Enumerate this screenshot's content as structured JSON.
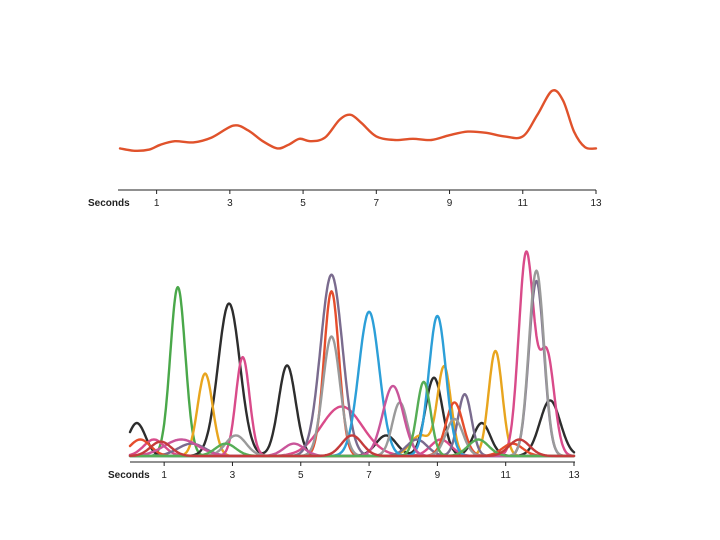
{
  "chart_data": [
    {
      "type": "line",
      "title": "",
      "xlabel": "Seconds",
      "xticks": [
        1,
        3,
        5,
        7,
        9,
        11,
        13
      ],
      "xlim": [
        0,
        13
      ],
      "ylim": [
        0,
        1
      ],
      "grid": false,
      "legend": "none",
      "series": [
        {
          "color": "#e0522b",
          "points": [
            [
              0,
              0.18
            ],
            [
              0.4,
              0.16
            ],
            [
              0.8,
              0.17
            ],
            [
              1.1,
              0.21
            ],
            [
              1.5,
              0.24
            ],
            [
              2.0,
              0.23
            ],
            [
              2.5,
              0.27
            ],
            [
              3.1,
              0.37
            ],
            [
              3.5,
              0.33
            ],
            [
              3.9,
              0.24
            ],
            [
              4.3,
              0.18
            ],
            [
              4.6,
              0.21
            ],
            [
              4.9,
              0.26
            ],
            [
              5.2,
              0.24
            ],
            [
              5.6,
              0.27
            ],
            [
              6.0,
              0.42
            ],
            [
              6.3,
              0.46
            ],
            [
              6.6,
              0.39
            ],
            [
              7.0,
              0.28
            ],
            [
              7.5,
              0.25
            ],
            [
              8.0,
              0.26
            ],
            [
              8.5,
              0.25
            ],
            [
              9.0,
              0.29
            ],
            [
              9.5,
              0.32
            ],
            [
              10.0,
              0.31
            ],
            [
              10.5,
              0.28
            ],
            [
              11.0,
              0.28
            ],
            [
              11.4,
              0.46
            ],
            [
              11.8,
              0.66
            ],
            [
              12.1,
              0.58
            ],
            [
              12.4,
              0.32
            ],
            [
              12.7,
              0.19
            ],
            [
              13,
              0.18
            ]
          ]
        }
      ]
    },
    {
      "type": "line",
      "title": "",
      "xlabel": "Seconds",
      "xticks": [
        1,
        3,
        5,
        7,
        9,
        11,
        13
      ],
      "xlim": [
        0,
        13
      ],
      "ylim": [
        0,
        1
      ],
      "grid": false,
      "legend": "none",
      "series": [
        {
          "color": "#4aa84a",
          "peaks": [
            [
              1.4,
              0.82,
              0.22
            ]
          ]
        },
        {
          "color": "#2d2d2d",
          "peaks": [
            [
              0.2,
              0.16,
              0.25
            ],
            [
              2.9,
              0.74,
              0.32
            ],
            [
              4.6,
              0.44,
              0.25
            ],
            [
              7.5,
              0.1,
              0.3
            ],
            [
              8.9,
              0.38,
              0.25
            ],
            [
              10.3,
              0.16,
              0.25
            ],
            [
              12.3,
              0.27,
              0.3
            ]
          ]
        },
        {
          "color": "#e8a51e",
          "peaks": [
            [
              2.2,
              0.4,
              0.22
            ],
            [
              8.5,
              0.1,
              0.3
            ],
            [
              9.2,
              0.43,
              0.2
            ],
            [
              10.7,
              0.51,
              0.2
            ]
          ]
        },
        {
          "color": "#d94b8a",
          "peaks": [
            [
              0.7,
              0.08,
              0.3
            ],
            [
              3.3,
              0.48,
              0.2
            ],
            [
              6.2,
              0.24,
              0.6
            ],
            [
              9.1,
              0.08,
              0.3
            ],
            [
              11.6,
              0.98,
              0.22
            ],
            [
              12.2,
              0.5,
              0.22
            ]
          ]
        },
        {
          "color": "#7a6b8e",
          "peaks": [
            [
              1.8,
              0.06,
              0.4
            ],
            [
              5.9,
              0.88,
              0.32
            ],
            [
              8.4,
              0.08,
              0.3
            ],
            [
              9.8,
              0.3,
              0.2
            ],
            [
              11.9,
              0.85,
              0.22
            ]
          ]
        },
        {
          "color": "#e54d2c",
          "peaks": [
            [
              0.3,
              0.08,
              0.3
            ],
            [
              5.9,
              0.8,
              0.22
            ],
            [
              9.5,
              0.26,
              0.25
            ],
            [
              11.2,
              0.06,
              0.3
            ]
          ]
        },
        {
          "color": "#2c9fd8",
          "peaks": [
            [
              7.0,
              0.7,
              0.3
            ],
            [
              9.0,
              0.68,
              0.25
            ]
          ]
        },
        {
          "color": "#9a9a9a",
          "peaks": [
            [
              3.1,
              0.1,
              0.3
            ],
            [
              5.9,
              0.58,
              0.25
            ],
            [
              7.9,
              0.26,
              0.22
            ],
            [
              9.5,
              0.18,
              0.25
            ],
            [
              11.9,
              0.9,
              0.22
            ]
          ]
        },
        {
          "color": "#c9559a",
          "peaks": [
            [
              1.5,
              0.08,
              0.5
            ],
            [
              4.8,
              0.06,
              0.3
            ],
            [
              7.7,
              0.34,
              0.3
            ]
          ]
        },
        {
          "color": "#56ad56",
          "peaks": [
            [
              2.8,
              0.06,
              0.3
            ],
            [
              8.6,
              0.36,
              0.2
            ],
            [
              10.2,
              0.08,
              0.3
            ]
          ]
        },
        {
          "color": "#c43b3b",
          "peaks": [
            [
              0.9,
              0.07,
              0.3
            ],
            [
              6.5,
              0.1,
              0.3
            ],
            [
              11.4,
              0.08,
              0.3
            ]
          ]
        }
      ]
    }
  ]
}
